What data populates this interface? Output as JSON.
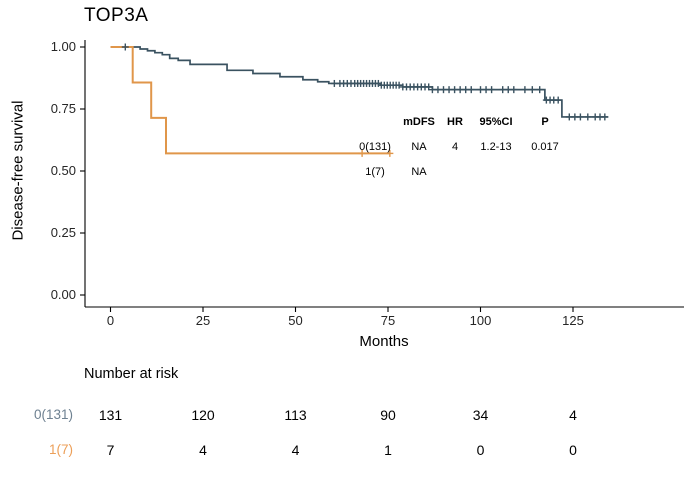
{
  "title": "TOP3A",
  "colors": {
    "axis": "#000000",
    "tick_text": "#262626",
    "group0_line": "#3a5260",
    "group1_line": "#e0964a",
    "group0_label": "#6e8191",
    "group1_label": "#ec9f58"
  },
  "chart_data": {
    "type": "line",
    "subtype": "kaplan_meier_step",
    "title": "TOP3A",
    "xlabel": "Months",
    "ylabel": "Disease-free survival",
    "xlim": [
      0,
      155
    ],
    "ylim": [
      0,
      1.0
    ],
    "grid": false,
    "xticks": [
      {
        "v": 0,
        "label": "0"
      },
      {
        "v": 25,
        "label": "25"
      },
      {
        "v": 50,
        "label": "50"
      },
      {
        "v": 75,
        "label": "75"
      },
      {
        "v": 100,
        "label": "100"
      },
      {
        "v": 125,
        "label": "125"
      }
    ],
    "yticks": [
      {
        "v": 1.0,
        "label": "1.00"
      },
      {
        "v": 0.75,
        "label": "0.75"
      },
      {
        "v": 0.5,
        "label": "0.50"
      },
      {
        "v": 0.25,
        "label": "0.25"
      },
      {
        "v": 0.0,
        "label": "0.00"
      }
    ],
    "series": [
      {
        "name": "0(131)",
        "n": 131,
        "color": "#3a5260",
        "line_width": 1.7,
        "steps": [
          [
            0,
            1.0
          ],
          [
            8,
            0.992
          ],
          [
            10,
            0.985
          ],
          [
            12,
            0.977
          ],
          [
            14,
            0.969
          ],
          [
            16,
            0.954
          ],
          [
            18.3,
            0.946
          ],
          [
            21.5,
            0.93
          ],
          [
            31.5,
            0.906
          ],
          [
            38.5,
            0.893
          ],
          [
            45.8,
            0.88
          ],
          [
            52,
            0.868
          ],
          [
            56,
            0.86
          ],
          [
            59,
            0.853
          ],
          [
            73,
            0.846
          ],
          [
            79,
            0.839
          ],
          [
            87,
            0.828
          ],
          [
            117.4,
            0.786
          ],
          [
            122,
            0.718
          ]
        ],
        "end": 134.5,
        "censor_times": [
          4,
          60.5,
          62,
          63,
          64,
          65,
          66,
          66.8,
          67.6,
          68.4,
          69.2,
          70,
          70.8,
          71.6,
          72.4,
          73.2,
          74,
          74.8,
          75.6,
          76.4,
          77.2,
          78,
          79,
          80,
          81,
          82,
          83,
          84,
          85,
          86,
          87,
          88.5,
          90,
          91.5,
          93,
          94.5,
          96,
          97.5,
          100,
          101.5,
          103,
          106,
          107.5,
          109,
          112,
          114,
          116,
          117.8,
          118.8,
          119.8,
          121,
          124,
          125.5,
          127,
          129,
          131,
          132.3,
          133.6
        ]
      },
      {
        "name": "1(7)",
        "n": 7,
        "color": "#e0964a",
        "line_width": 2.0,
        "steps": [
          [
            0,
            1.0
          ],
          [
            6,
            0.857
          ],
          [
            11,
            0.714
          ],
          [
            15,
            0.571
          ]
        ],
        "end": 75.5,
        "censor_times": [
          68,
          75.5
        ]
      }
    ],
    "annotation_table": {
      "headers": [
        "mDFS",
        "HR",
        "95%CI",
        "P"
      ],
      "rows": [
        [
          "0(131)",
          "NA",
          "4",
          "1.2-13",
          "0.017"
        ],
        [
          "1(7)",
          "NA",
          "",
          "",
          ""
        ]
      ]
    }
  },
  "risk_table": {
    "title": "Number at risk",
    "time_points": [
      0,
      25,
      50,
      75,
      100,
      125
    ],
    "rows": [
      {
        "label": "0(131)",
        "color": "#6e8191",
        "values": [
          "131",
          "120",
          "113",
          "90",
          "34",
          "4"
        ]
      },
      {
        "label": "1(7)",
        "color": "#ec9f58",
        "values": [
          "7",
          "4",
          "4",
          "1",
          "0",
          "0"
        ]
      }
    ]
  }
}
